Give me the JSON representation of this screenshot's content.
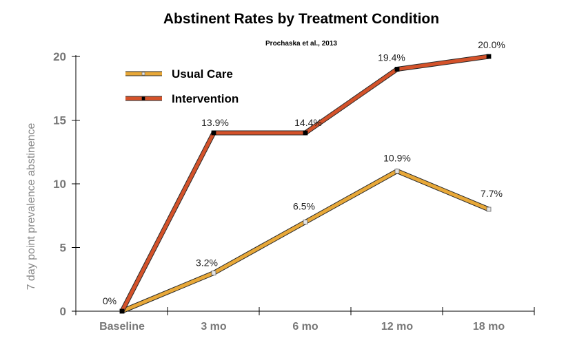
{
  "chart_data": {
    "type": "line",
    "title": "Abstinent Rates by Treatment Condition",
    "subtitle": "Prochaska et al., 2013",
    "xlabel": "",
    "ylabel": "7 day point prevalence abstinence",
    "categories": [
      "Baseline",
      "3 mo",
      "6 mo",
      "12 mo",
      "18 mo"
    ],
    "yticks": [
      0,
      5,
      10,
      15,
      20
    ],
    "ylim": [
      0,
      20
    ],
    "grid": false,
    "legend_position": "top-left",
    "series": [
      {
        "name": "Usual Care",
        "color": "#e8a838",
        "marker": "white-square",
        "values": [
          0,
          3.0,
          7.0,
          11.0,
          8.0
        ],
        "labels": [
          "0%",
          "3.2%",
          "6.5%",
          "10.9%",
          "7.7%"
        ]
      },
      {
        "name": "Intervention",
        "color": "#d4522a",
        "marker": "black-square",
        "values": [
          0,
          14.0,
          14.0,
          19.0,
          20.0
        ],
        "labels": [
          "",
          "13.9%",
          "14.4%",
          "19.4%",
          "20.0%"
        ]
      }
    ]
  }
}
